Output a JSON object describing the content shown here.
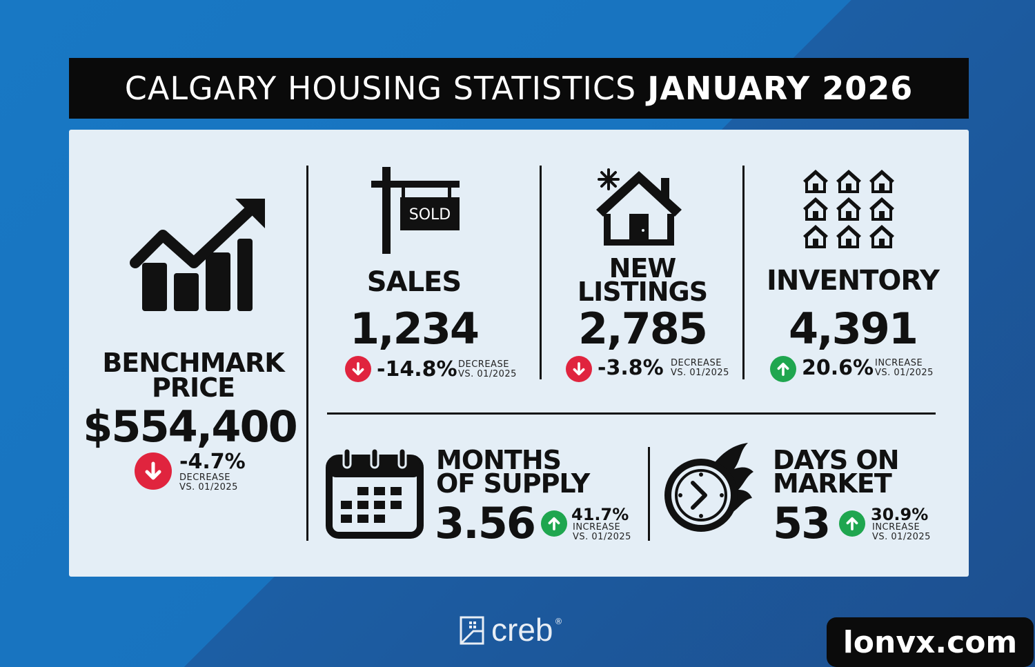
{
  "title": {
    "light": "CALGARY HOUSING STATISTICS",
    "bold": "JANUARY 2026"
  },
  "benchmark": {
    "label_line1": "BENCHMARK",
    "label_line2": "PRICE",
    "value": "$554,400",
    "change": "-4.7%",
    "direction": "DECREASE",
    "compare": "VS. 01/2025"
  },
  "sales": {
    "sign": "SOLD",
    "label": "SALES",
    "value": "1,234",
    "change": "-14.8%",
    "direction": "DECREASE",
    "compare": "VS. 01/2025"
  },
  "new_listings": {
    "label_line1": "NEW",
    "label_line2": "LISTINGS",
    "value": "2,785",
    "change": "-3.8%",
    "direction": "DECREASE",
    "compare": "VS. 01/2025"
  },
  "inventory": {
    "label": "INVENTORY",
    "value": "4,391",
    "change": "20.6%",
    "direction": "INCREASE",
    "compare": "VS. 01/2025"
  },
  "months_supply": {
    "label_line1": "MONTHS",
    "label_line2": "OF SUPPLY",
    "value": "3.56",
    "change": "41.7%",
    "direction": "INCREASE",
    "compare": "VS. 01/2025"
  },
  "days_on_market": {
    "label_line1": "DAYS ON",
    "label_line2": "MARKET",
    "value": "53",
    "change": "30.9%",
    "direction": "INCREASE",
    "compare": "VS. 01/2025"
  },
  "footer": {
    "brand": "creb",
    "reg": "®"
  },
  "watermark": "lonvx.com",
  "colors": {
    "decrease": "#e0243e",
    "increase": "#1fa64f",
    "panel": "#e4eef6",
    "title_bg": "#0a0a0a"
  }
}
